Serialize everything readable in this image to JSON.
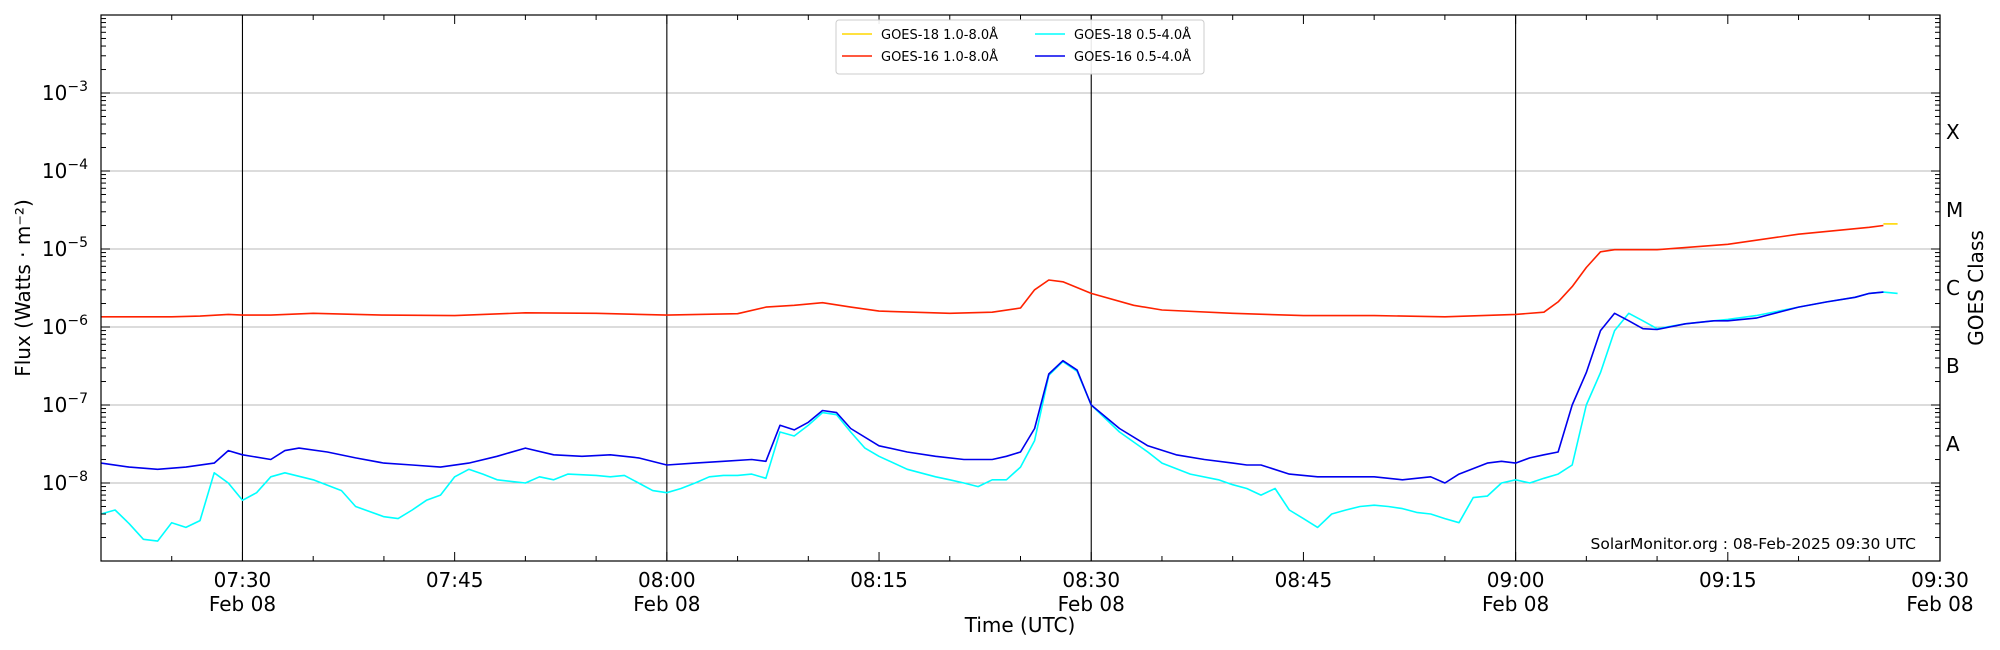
{
  "chart_data": {
    "type": "line",
    "title": "",
    "xlabel": "Time (UTC)",
    "ylabel": "Flux (Watts · m⁻²)",
    "y2label": "GOES Class",
    "yscale": "log",
    "ylim": [
      1e-09,
      0.01
    ],
    "xlim": [
      "07:20",
      "09:30"
    ],
    "x_ticks": [
      {
        "t": "07:30",
        "line1": "07:30",
        "line2": "Feb 08"
      },
      {
        "t": "07:45",
        "line1": "07:45",
        "line2": ""
      },
      {
        "t": "08:00",
        "line1": "08:00",
        "line2": "Feb 08"
      },
      {
        "t": "08:15",
        "line1": "08:15",
        "line2": ""
      },
      {
        "t": "08:30",
        "line1": "08:30",
        "line2": "Feb 08"
      },
      {
        "t": "08:45",
        "line1": "08:45",
        "line2": ""
      },
      {
        "t": "09:00",
        "line1": "09:00",
        "line2": "Feb 08"
      },
      {
        "t": "09:15",
        "line1": "09:15",
        "line2": ""
      },
      {
        "t": "09:30",
        "line1": "09:30",
        "line2": "Feb 08"
      }
    ],
    "y_ticks": [
      {
        "value": 1e-08,
        "base": "10",
        "exp": "−8"
      },
      {
        "value": 1e-07,
        "base": "10",
        "exp": "−7"
      },
      {
        "value": 1e-06,
        "base": "10",
        "exp": "−6"
      },
      {
        "value": 1e-05,
        "base": "10",
        "exp": "−5"
      },
      {
        "value": 0.0001,
        "base": "10",
        "exp": "−4"
      },
      {
        "value": 0.001,
        "base": "10",
        "exp": "−3"
      }
    ],
    "class_labels": [
      {
        "label": "A",
        "value": 1e-08
      },
      {
        "label": "B",
        "value": 1e-07
      },
      {
        "label": "C",
        "value": 1e-06
      },
      {
        "label": "M",
        "value": 1e-05
      },
      {
        "label": "X",
        "value": 0.0001
      }
    ],
    "grid": {
      "horizontal": true,
      "vertical_at_day_ticks": [
        "07:30",
        "08:00",
        "08:30",
        "09:00",
        "09:30"
      ]
    },
    "legend_position": "top-center",
    "annotation": "SolarMonitor.org : 08-Feb-2025 09:30 UTC",
    "series": [
      {
        "name": "GOES-18 1.0-8.0Å",
        "color": "#ffd700",
        "x": [
          "09:26",
          "09:27"
        ],
        "y": [
          2.1e-05,
          2.1e-05
        ]
      },
      {
        "name": "GOES-16 1.0-8.0Å",
        "color": "#ff2200",
        "x": [
          "07:20",
          "07:25",
          "07:27",
          "07:29",
          "07:30",
          "07:32",
          "07:35",
          "07:40",
          "07:45",
          "07:50",
          "07:55",
          "08:00",
          "08:05",
          "08:07",
          "08:09",
          "08:11",
          "08:13",
          "08:15",
          "08:20",
          "08:23",
          "08:25",
          "08:26",
          "08:27",
          "08:28",
          "08:30",
          "08:33",
          "08:35",
          "08:40",
          "08:45",
          "08:50",
          "08:55",
          "09:00",
          "09:02",
          "09:03",
          "09:04",
          "09:05",
          "09:06",
          "09:07",
          "09:10",
          "09:15",
          "09:20",
          "09:25",
          "09:26"
        ],
        "y": [
          1.35e-06,
          1.35e-06,
          1.38e-06,
          1.45e-06,
          1.42e-06,
          1.42e-06,
          1.5e-06,
          1.42e-06,
          1.4e-06,
          1.52e-06,
          1.5e-06,
          1.42e-06,
          1.48e-06,
          1.8e-06,
          1.9e-06,
          2.05e-06,
          1.8e-06,
          1.6e-06,
          1.5e-06,
          1.55e-06,
          1.75e-06,
          3e-06,
          4e-06,
          3.8e-06,
          2.7e-06,
          1.9e-06,
          1.65e-06,
          1.5e-06,
          1.4e-06,
          1.4e-06,
          1.35e-06,
          1.45e-06,
          1.55e-06,
          2.1e-06,
          3.3e-06,
          5.8e-06,
          9.2e-06,
          9.8e-06,
          9.8e-06,
          1.15e-05,
          1.55e-05,
          1.9e-05,
          2e-05
        ]
      },
      {
        "name": "GOES-18 0.5-4.0Å",
        "color": "#00ffff",
        "x": [
          "07:20",
          "07:21",
          "07:22",
          "07:23",
          "07:24",
          "07:25",
          "07:26",
          "07:27",
          "07:28",
          "07:29",
          "07:30",
          "07:31",
          "07:32",
          "07:33",
          "07:35",
          "07:37",
          "07:38",
          "07:40",
          "07:41",
          "07:42",
          "07:43",
          "07:44",
          "07:45",
          "07:46",
          "07:47",
          "07:48",
          "07:50",
          "07:51",
          "07:52",
          "07:53",
          "07:55",
          "07:56",
          "07:57",
          "07:58",
          "07:59",
          "08:00",
          "08:01",
          "08:02",
          "08:03",
          "08:04",
          "08:05",
          "08:06",
          "08:07",
          "08:08",
          "08:09",
          "08:10",
          "08:11",
          "08:12",
          "08:13",
          "08:14",
          "08:15",
          "08:17",
          "08:19",
          "08:20",
          "08:21",
          "08:22",
          "08:23",
          "08:24",
          "08:25",
          "08:26",
          "08:27",
          "08:28",
          "08:29",
          "08:30",
          "08:32",
          "08:34",
          "08:35",
          "08:37",
          "08:39",
          "08:40",
          "08:41",
          "08:42",
          "08:43",
          "08:44",
          "08:45",
          "08:46",
          "08:47",
          "08:48",
          "08:49",
          "08:50",
          "08:51",
          "08:52",
          "08:53",
          "08:54",
          "08:55",
          "08:56",
          "08:57",
          "08:58",
          "08:59",
          "09:00",
          "09:01",
          "09:02",
          "09:03",
          "09:04",
          "09:05",
          "09:06",
          "09:07",
          "09:08",
          "09:09",
          "09:10",
          "09:12",
          "09:14",
          "09:15",
          "09:17",
          "09:20",
          "09:22",
          "09:24",
          "09:25",
          "09:26",
          "09:27"
        ],
        "y": [
          4e-09,
          4.5e-09,
          3e-09,
          1.9e-09,
          1.8e-09,
          3.1e-09,
          2.7e-09,
          3.3e-09,
          1.35e-08,
          1e-08,
          6e-09,
          7.5e-09,
          1.2e-08,
          1.35e-08,
          1.1e-08,
          8e-09,
          5e-09,
          3.7e-09,
          3.5e-09,
          4.5e-09,
          6e-09,
          7e-09,
          1.2e-08,
          1.5e-08,
          1.3e-08,
          1.1e-08,
          1e-08,
          1.2e-08,
          1.1e-08,
          1.3e-08,
          1.25e-08,
          1.2e-08,
          1.25e-08,
          1e-08,
          8e-09,
          7.5e-09,
          8.5e-09,
          1e-08,
          1.2e-08,
          1.25e-08,
          1.25e-08,
          1.3e-08,
          1.15e-08,
          4.5e-08,
          4e-08,
          5.5e-08,
          8e-08,
          7.5e-08,
          4.5e-08,
          2.8e-08,
          2.2e-08,
          1.5e-08,
          1.2e-08,
          1.1e-08,
          1e-08,
          9e-09,
          1.1e-08,
          1.1e-08,
          1.6e-08,
          3.5e-08,
          2.4e-07,
          3.6e-07,
          2.7e-07,
          1e-07,
          4.5e-08,
          2.5e-08,
          1.8e-08,
          1.3e-08,
          1.1e-08,
          9.5e-09,
          8.5e-09,
          7e-09,
          8.5e-09,
          4.5e-09,
          3.5e-09,
          2.7e-09,
          4e-09,
          4.5e-09,
          5e-09,
          5.2e-09,
          5e-09,
          4.7e-09,
          4.2e-09,
          4e-09,
          3.5e-09,
          3.1e-09,
          6.5e-09,
          6.8e-09,
          1e-08,
          1.1e-08,
          1e-08,
          1.15e-08,
          1.3e-08,
          1.7e-08,
          1e-07,
          2.6e-07,
          9e-07,
          1.5e-06,
          1.2e-06,
          9.5e-07,
          1.1e-06,
          1.2e-06,
          1.25e-06,
          1.4e-06,
          1.8e-06,
          2.1e-06,
          2.4e-06,
          2.7e-06,
          2.8e-06,
          2.7e-06
        ]
      },
      {
        "name": "GOES-16 0.5-4.0Å",
        "color": "#0000ee",
        "x": [
          "07:20",
          "07:22",
          "07:24",
          "07:26",
          "07:28",
          "07:29",
          "07:30",
          "07:32",
          "07:33",
          "07:34",
          "07:36",
          "07:38",
          "07:40",
          "07:42",
          "07:44",
          "07:46",
          "07:48",
          "07:50",
          "07:52",
          "07:54",
          "07:56",
          "07:58",
          "08:00",
          "08:02",
          "08:04",
          "08:06",
          "08:07",
          "08:08",
          "08:09",
          "08:10",
          "08:11",
          "08:12",
          "08:13",
          "08:15",
          "08:17",
          "08:19",
          "08:21",
          "08:23",
          "08:24",
          "08:25",
          "08:26",
          "08:27",
          "08:28",
          "08:29",
          "08:30",
          "08:32",
          "08:34",
          "08:36",
          "08:38",
          "08:40",
          "08:41",
          "08:42",
          "08:44",
          "08:46",
          "08:48",
          "08:50",
          "08:52",
          "08:54",
          "08:55",
          "08:56",
          "08:58",
          "08:59",
          "09:00",
          "09:01",
          "09:02",
          "09:03",
          "09:04",
          "09:05",
          "09:06",
          "09:07",
          "09:08",
          "09:09",
          "09:10",
          "09:12",
          "09:14",
          "09:15",
          "09:17",
          "09:20",
          "09:22",
          "09:24",
          "09:25",
          "09:26"
        ],
        "y": [
          1.8e-08,
          1.6e-08,
          1.5e-08,
          1.6e-08,
          1.8e-08,
          2.6e-08,
          2.3e-08,
          2e-08,
          2.6e-08,
          2.8e-08,
          2.5e-08,
          2.1e-08,
          1.8e-08,
          1.7e-08,
          1.6e-08,
          1.8e-08,
          2.2e-08,
          2.8e-08,
          2.3e-08,
          2.2e-08,
          2.3e-08,
          2.1e-08,
          1.7e-08,
          1.8e-08,
          1.9e-08,
          2e-08,
          1.9e-08,
          5.5e-08,
          4.8e-08,
          6e-08,
          8.5e-08,
          8e-08,
          5e-08,
          3e-08,
          2.5e-08,
          2.2e-08,
          2e-08,
          2e-08,
          2.2e-08,
          2.5e-08,
          5e-08,
          2.5e-07,
          3.7e-07,
          2.8e-07,
          1e-07,
          5e-08,
          3e-08,
          2.3e-08,
          2e-08,
          1.8e-08,
          1.7e-08,
          1.7e-08,
          1.3e-08,
          1.2e-08,
          1.2e-08,
          1.2e-08,
          1.1e-08,
          1.2e-08,
          1e-08,
          1.3e-08,
          1.8e-08,
          1.9e-08,
          1.8e-08,
          2.1e-08,
          2.3e-08,
          2.5e-08,
          1e-07,
          2.6e-07,
          9e-07,
          1.5e-06,
          1.2e-06,
          9.5e-07,
          9.3e-07,
          1.1e-06,
          1.2e-06,
          1.2e-06,
          1.3e-06,
          1.8e-06,
          2.1e-06,
          2.4e-06,
          2.7e-06,
          2.8e-06
        ]
      }
    ]
  }
}
